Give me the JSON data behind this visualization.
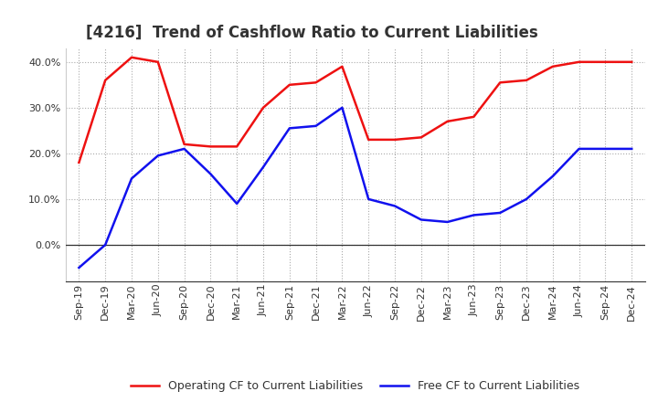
{
  "title": "[4216]  Trend of Cashflow Ratio to Current Liabilities",
  "x_labels": [
    "Sep-19",
    "Dec-19",
    "Mar-20",
    "Jun-20",
    "Sep-20",
    "Dec-20",
    "Mar-21",
    "Jun-21",
    "Sep-21",
    "Dec-21",
    "Mar-22",
    "Jun-22",
    "Sep-22",
    "Dec-22",
    "Mar-23",
    "Jun-23",
    "Sep-23",
    "Dec-23",
    "Mar-24",
    "Jun-24",
    "Sep-24",
    "Dec-24"
  ],
  "op_cf": [
    18.0,
    36.0,
    41.0,
    40.0,
    22.0,
    21.5,
    21.5,
    30.0,
    35.0,
    35.5,
    39.0,
    23.0,
    23.0,
    23.5,
    27.0,
    28.0,
    35.5,
    36.0,
    39.0,
    40.0,
    40.0,
    40.0
  ],
  "free_cf": [
    -5.0,
    0.0,
    14.5,
    19.5,
    21.0,
    15.5,
    9.0,
    17.0,
    25.5,
    26.0,
    30.0,
    10.0,
    8.5,
    5.5,
    5.0,
    6.5,
    7.0,
    10.0,
    15.0,
    21.0,
    21.0,
    21.0
  ],
  "operating_color": "#ee1111",
  "free_color": "#1111ee",
  "ylim_min": -8.0,
  "ylim_max": 43.0,
  "yticks": [
    0.0,
    10.0,
    20.0,
    30.0,
    40.0
  ],
  "legend_op": "Operating CF to Current Liabilities",
  "legend_free": "Free CF to Current Liabilities",
  "background_color": "#ffffff",
  "grid_color": "#aaaaaa",
  "title_fontsize": 12,
  "tick_fontsize": 8,
  "legend_fontsize": 9
}
